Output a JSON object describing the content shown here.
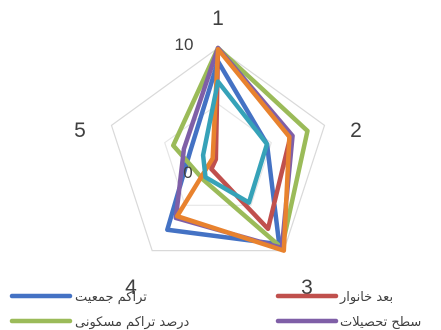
{
  "chart_data": {
    "type": "radar",
    "axes": [
      "1",
      "2",
      "3",
      "4",
      "5"
    ],
    "r_range": [
      0,
      10
    ],
    "tick_labels": [
      "0",
      "10"
    ],
    "grid": true,
    "legend_position": "bottom",
    "series": [
      {
        "name": "تراکم جمعیت",
        "color": "#4472C4",
        "values": [
          8.8,
          4.6,
          9.3,
          7.7,
          2.6
        ]
      },
      {
        "name": "بعد خانوار",
        "color": "#C0504D",
        "values": [
          10.0,
          6.8,
          7.6,
          1.0,
          0.2
        ]
      },
      {
        "name": "درصد تراکم مسکونی",
        "color": "#9BBB59",
        "values": [
          10.0,
          8.4,
          9.7,
          2.2,
          4.2
        ]
      },
      {
        "name": "سطح تحصیلات",
        "color": "#7F5FA7",
        "values": [
          10.0,
          7.0,
          9.7,
          6.4,
          3.2
        ]
      },
      {
        "name": "",
        "color": "#E8822E",
        "values": [
          9.9,
          6.7,
          10.0,
          6.2,
          0.5
        ]
      },
      {
        "name": "",
        "color": "#36A2B8",
        "values": [
          7.0,
          4.6,
          4.7,
          1.9,
          1.4
        ]
      }
    ]
  }
}
